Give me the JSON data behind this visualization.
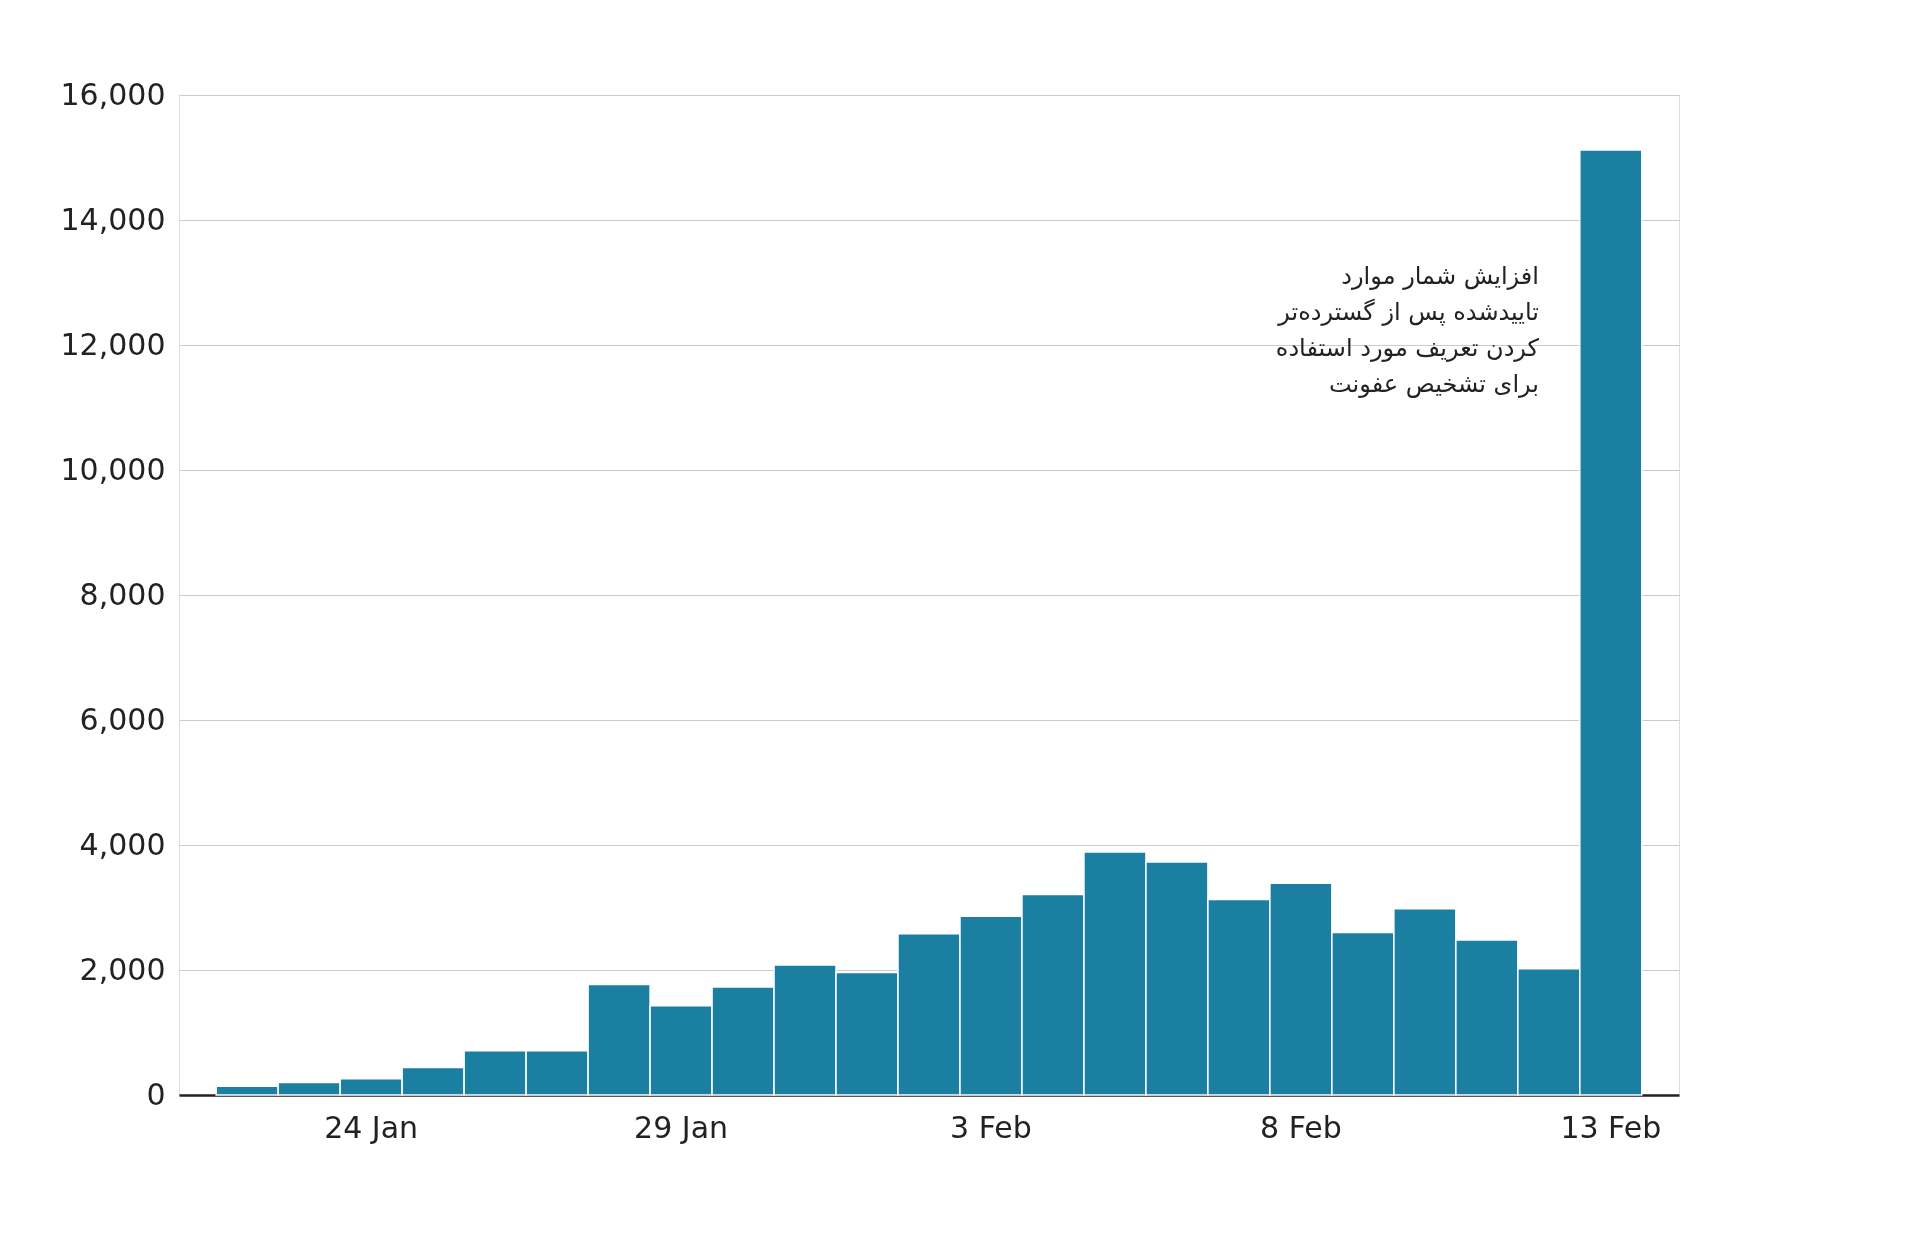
{
  "chart_data": {
    "type": "bar",
    "categories": [
      null,
      null,
      "24 Jan",
      null,
      null,
      null,
      null,
      "29 Jan",
      null,
      null,
      null,
      null,
      "3 Feb",
      null,
      null,
      null,
      null,
      "8 Feb",
      null,
      null,
      null,
      null,
      "13 Feb"
    ],
    "values": [
      140,
      200,
      260,
      440,
      710,
      710,
      1770,
      1430,
      1730,
      2080,
      1960,
      2580,
      2860,
      3210,
      3890,
      3730,
      3130,
      3390,
      2600,
      2980,
      2480,
      2020,
      15120
    ],
    "color": "#1a7fa0",
    "ylim": [
      0,
      16000
    ],
    "yticks": [
      0,
      {
        "value": 2000,
        "label": "2,000"
      },
      {
        "value": 4000,
        "label": "4,000"
      },
      {
        "value": 6000,
        "label": "6,000"
      },
      {
        "value": 8000,
        "label": "8,000"
      },
      {
        "value": 10000,
        "label": "10,000"
      },
      {
        "value": 12000,
        "label": "12,000"
      },
      {
        "value": 14000,
        "label": "14,000"
      },
      {
        "value": 16000,
        "label": "16,000"
      }
    ],
    "grid": "y",
    "annotations": [
      "افزایش شمار موارد\nتاییدشده پس از گسترده‌تر\nکردن تعریف  مورد استفاده\nبرای تشخیص عفونت"
    ]
  }
}
